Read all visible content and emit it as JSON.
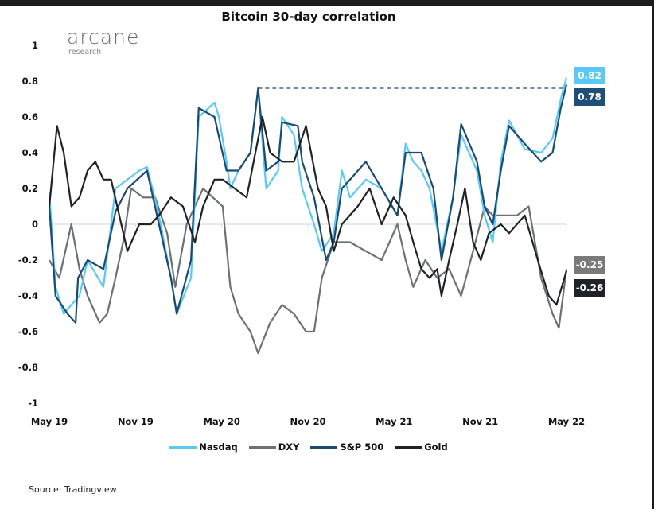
{
  "logo": {
    "main": "arcane",
    "sub": "research"
  },
  "chart_data": {
    "type": "line",
    "title": "Bitcoin 30-day correlation",
    "xlabel": "",
    "ylabel": "",
    "ylim": [
      -1,
      1
    ],
    "yticks": [
      "1",
      "0.8",
      "0.6",
      "0.4",
      "0.2",
      "0",
      "-0.2",
      "-0.4",
      "-0.6",
      "-0.8",
      "-1"
    ],
    "xticks": [
      {
        "label": "May 19",
        "date": "2019-05-01"
      },
      {
        "label": "Nov 19",
        "date": "2019-11-01"
      },
      {
        "label": "May 20",
        "date": "2020-05-01"
      },
      {
        "label": "Nov 20",
        "date": "2020-11-01"
      },
      {
        "label": "May 21",
        "date": "2021-05-01"
      },
      {
        "label": "Nov 21",
        "date": "2021-11-01"
      },
      {
        "label": "May 22",
        "date": "2022-05-01"
      }
    ],
    "grid": false,
    "legend_position": "bottom",
    "series": [
      {
        "name": "Nasdaq",
        "color": "#5bc8f5",
        "end_label": "0.82",
        "points": [
          [
            "2019-05-01",
            0.18
          ],
          [
            "2019-05-14",
            -0.35
          ],
          [
            "2019-06-01",
            -0.5
          ],
          [
            "2019-06-17",
            -0.45
          ],
          [
            "2019-07-04",
            -0.4
          ],
          [
            "2019-07-21",
            -0.2
          ],
          [
            "2019-08-24",
            -0.35
          ],
          [
            "2019-09-19",
            0.2
          ],
          [
            "2019-10-14",
            0.25
          ],
          [
            "2019-11-09",
            0.3
          ],
          [
            "2019-11-25",
            0.32
          ],
          [
            "2019-12-20",
            0.05
          ],
          [
            "2020-01-15",
            -0.3
          ],
          [
            "2020-01-27",
            -0.5
          ],
          [
            "2020-02-27",
            -0.3
          ],
          [
            "2020-03-13",
            0.6
          ],
          [
            "2020-04-16",
            0.68
          ],
          [
            "2020-04-25",
            0.6
          ],
          [
            "2020-05-11",
            0.35
          ],
          [
            "2020-05-19",
            0.2
          ],
          [
            "2020-06-06",
            0.3
          ],
          [
            "2020-07-01",
            0.4
          ],
          [
            "2020-07-17",
            0.75
          ],
          [
            "2020-08-04",
            0.2
          ],
          [
            "2020-08-29",
            0.3
          ],
          [
            "2020-09-07",
            0.6
          ],
          [
            "2020-10-02",
            0.5
          ],
          [
            "2020-10-19",
            0.2
          ],
          [
            "2020-11-14",
            0.0
          ],
          [
            "2020-11-30",
            -0.15
          ],
          [
            "2020-12-25",
            -0.05
          ],
          [
            "2021-01-12",
            0.3
          ],
          [
            "2021-01-29",
            0.15
          ],
          [
            "2021-03-02",
            0.25
          ],
          [
            "2021-04-05",
            0.2
          ],
          [
            "2021-05-08",
            0.05
          ],
          [
            "2021-05-25",
            0.45
          ],
          [
            "2021-06-11",
            0.35
          ],
          [
            "2021-06-28",
            0.3
          ],
          [
            "2021-07-15",
            0.2
          ],
          [
            "2021-08-10",
            -0.15
          ],
          [
            "2021-09-04",
            0.15
          ],
          [
            "2021-09-21",
            0.5
          ],
          [
            "2021-10-24",
            0.3
          ],
          [
            "2021-11-10",
            0.05
          ],
          [
            "2021-11-27",
            -0.1
          ],
          [
            "2021-12-14",
            0.35
          ],
          [
            "2022-01-01",
            0.58
          ],
          [
            "2022-02-04",
            0.42
          ],
          [
            "2022-03-08",
            0.4
          ],
          [
            "2022-04-02",
            0.48
          ],
          [
            "2022-04-19",
            0.7
          ],
          [
            "2022-05-01",
            0.82
          ]
        ]
      },
      {
        "name": "DXY",
        "color": "#6b7177",
        "end_label": "-0.25",
        "points": [
          [
            "2019-05-01",
            -0.2
          ],
          [
            "2019-05-22",
            -0.3
          ],
          [
            "2019-06-17",
            0.0
          ],
          [
            "2019-07-04",
            -0.25
          ],
          [
            "2019-07-21",
            -0.4
          ],
          [
            "2019-08-16",
            -0.55
          ],
          [
            "2019-09-02",
            -0.5
          ],
          [
            "2019-09-19",
            -0.3
          ],
          [
            "2019-10-05",
            -0.1
          ],
          [
            "2019-10-22",
            0.2
          ],
          [
            "2019-11-17",
            0.15
          ],
          [
            "2019-12-12",
            0.15
          ],
          [
            "2020-01-07",
            -0.05
          ],
          [
            "2020-01-24",
            -0.35
          ],
          [
            "2020-02-18",
            0.0
          ],
          [
            "2020-03-22",
            0.2
          ],
          [
            "2020-05-03",
            0.1
          ],
          [
            "2020-05-19",
            -0.35
          ],
          [
            "2020-06-06",
            -0.5
          ],
          [
            "2020-07-01",
            -0.6
          ],
          [
            "2020-07-17",
            -0.72
          ],
          [
            "2020-08-12",
            -0.55
          ],
          [
            "2020-09-07",
            -0.45
          ],
          [
            "2020-10-02",
            -0.5
          ],
          [
            "2020-10-27",
            -0.6
          ],
          [
            "2020-11-14",
            -0.6
          ],
          [
            "2020-11-30",
            -0.3
          ],
          [
            "2020-12-25",
            -0.1
          ],
          [
            "2021-01-29",
            -0.1
          ],
          [
            "2021-03-02",
            -0.15
          ],
          [
            "2021-04-05",
            -0.2
          ],
          [
            "2021-05-08",
            0.0
          ],
          [
            "2021-05-25",
            -0.2
          ],
          [
            "2021-06-11",
            -0.35
          ],
          [
            "2021-07-06",
            -0.2
          ],
          [
            "2021-08-01",
            -0.3
          ],
          [
            "2021-08-26",
            -0.25
          ],
          [
            "2021-09-21",
            -0.4
          ],
          [
            "2021-10-16",
            -0.15
          ],
          [
            "2021-11-10",
            0.1
          ],
          [
            "2021-11-27",
            0.05
          ],
          [
            "2022-01-01",
            0.05
          ],
          [
            "2022-01-18",
            0.05
          ],
          [
            "2022-02-12",
            0.1
          ],
          [
            "2022-03-08",
            -0.3
          ],
          [
            "2022-04-02",
            -0.5
          ],
          [
            "2022-04-15",
            -0.58
          ],
          [
            "2022-05-01",
            -0.25
          ]
        ]
      },
      {
        "name": "S&P 500",
        "color": "#1b4a72",
        "end_label": "0.78",
        "points": [
          [
            "2019-05-01",
            0.1
          ],
          [
            "2019-05-14",
            -0.4
          ],
          [
            "2019-06-09",
            -0.5
          ],
          [
            "2019-06-26",
            -0.55
          ],
          [
            "2019-07-01",
            -0.3
          ],
          [
            "2019-07-21",
            -0.2
          ],
          [
            "2019-08-24",
            -0.25
          ],
          [
            "2019-09-19",
            0.07
          ],
          [
            "2019-10-14",
            0.2
          ],
          [
            "2019-11-25",
            0.3
          ],
          [
            "2019-12-20",
            0.0
          ],
          [
            "2020-01-15",
            -0.3
          ],
          [
            "2020-01-27",
            -0.5
          ],
          [
            "2020-02-27",
            -0.2
          ],
          [
            "2020-03-13",
            0.65
          ],
          [
            "2020-04-16",
            0.6
          ],
          [
            "2020-05-11",
            0.3
          ],
          [
            "2020-06-06",
            0.3
          ],
          [
            "2020-07-01",
            0.4
          ],
          [
            "2020-07-17",
            0.76
          ],
          [
            "2020-08-04",
            0.3
          ],
          [
            "2020-08-29",
            0.35
          ],
          [
            "2020-09-07",
            0.57
          ],
          [
            "2020-10-10",
            0.55
          ],
          [
            "2020-10-19",
            0.35
          ],
          [
            "2020-11-14",
            0.15
          ],
          [
            "2020-12-09",
            -0.2
          ],
          [
            "2020-12-25",
            -0.1
          ],
          [
            "2021-01-12",
            0.2
          ],
          [
            "2021-01-29",
            0.25
          ],
          [
            "2021-03-02",
            0.35
          ],
          [
            "2021-04-05",
            0.2
          ],
          [
            "2021-05-08",
            0.05
          ],
          [
            "2021-05-25",
            0.4
          ],
          [
            "2021-06-28",
            0.4
          ],
          [
            "2021-07-23",
            0.2
          ],
          [
            "2021-08-10",
            -0.2
          ],
          [
            "2021-09-04",
            0.15
          ],
          [
            "2021-09-21",
            0.56
          ],
          [
            "2021-10-24",
            0.35
          ],
          [
            "2021-11-10",
            0.1
          ],
          [
            "2021-11-27",
            0.0
          ],
          [
            "2021-12-14",
            0.3
          ],
          [
            "2022-01-01",
            0.55
          ],
          [
            "2022-02-04",
            0.45
          ],
          [
            "2022-03-08",
            0.35
          ],
          [
            "2022-04-02",
            0.4
          ],
          [
            "2022-04-19",
            0.65
          ],
          [
            "2022-05-01",
            0.78
          ]
        ]
      },
      {
        "name": "Gold",
        "color": "#1f2328",
        "end_label": "-0.26",
        "points": [
          [
            "2019-05-01",
            0.1
          ],
          [
            "2019-05-17",
            0.55
          ],
          [
            "2019-06-01",
            0.4
          ],
          [
            "2019-06-17",
            0.1
          ],
          [
            "2019-07-04",
            0.15
          ],
          [
            "2019-07-21",
            0.3
          ],
          [
            "2019-08-07",
            0.35
          ],
          [
            "2019-08-24",
            0.25
          ],
          [
            "2019-09-10",
            0.25
          ],
          [
            "2019-09-27",
            0.05
          ],
          [
            "2019-10-14",
            -0.15
          ],
          [
            "2019-11-09",
            0.0
          ],
          [
            "2019-12-03",
            0.0
          ],
          [
            "2019-12-20",
            0.05
          ],
          [
            "2020-01-15",
            0.15
          ],
          [
            "2020-02-10",
            0.1
          ],
          [
            "2020-03-05",
            -0.1
          ],
          [
            "2020-03-22",
            0.1
          ],
          [
            "2020-04-16",
            0.25
          ],
          [
            "2020-05-03",
            0.25
          ],
          [
            "2020-05-28",
            0.2
          ],
          [
            "2020-06-23",
            0.15
          ],
          [
            "2020-07-26",
            0.6
          ],
          [
            "2020-08-12",
            0.4
          ],
          [
            "2020-09-07",
            0.35
          ],
          [
            "2020-10-02",
            0.35
          ],
          [
            "2020-10-27",
            0.55
          ],
          [
            "2020-11-22",
            0.2
          ],
          [
            "2020-12-09",
            0.1
          ],
          [
            "2020-12-25",
            -0.15
          ],
          [
            "2021-01-12",
            0.0
          ],
          [
            "2021-02-15",
            0.1
          ],
          [
            "2021-03-10",
            0.2
          ],
          [
            "2021-04-05",
            0.0
          ],
          [
            "2021-04-30",
            0.15
          ],
          [
            "2021-05-25",
            0.05
          ],
          [
            "2021-06-11",
            -0.1
          ],
          [
            "2021-06-28",
            -0.25
          ],
          [
            "2021-07-15",
            -0.3
          ],
          [
            "2021-08-01",
            -0.25
          ],
          [
            "2021-08-10",
            -0.4
          ],
          [
            "2021-08-26",
            -0.2
          ],
          [
            "2021-09-13",
            0.0
          ],
          [
            "2021-09-29",
            0.2
          ],
          [
            "2021-10-16",
            -0.1
          ],
          [
            "2021-11-02",
            -0.2
          ],
          [
            "2021-11-19",
            -0.05
          ],
          [
            "2021-12-14",
            0.0
          ],
          [
            "2022-01-01",
            -0.05
          ],
          [
            "2022-02-04",
            0.05
          ],
          [
            "2022-03-01",
            -0.2
          ],
          [
            "2022-03-24",
            -0.4
          ],
          [
            "2022-04-10",
            -0.45
          ],
          [
            "2022-05-01",
            -0.26
          ]
        ]
      }
    ],
    "annotations": [
      {
        "type": "dashed-hline",
        "value": 0.76,
        "from": "2020-07-17",
        "to": "2022-05-01",
        "color": "#1b4a72"
      }
    ],
    "source": "Source: Tradingview"
  }
}
